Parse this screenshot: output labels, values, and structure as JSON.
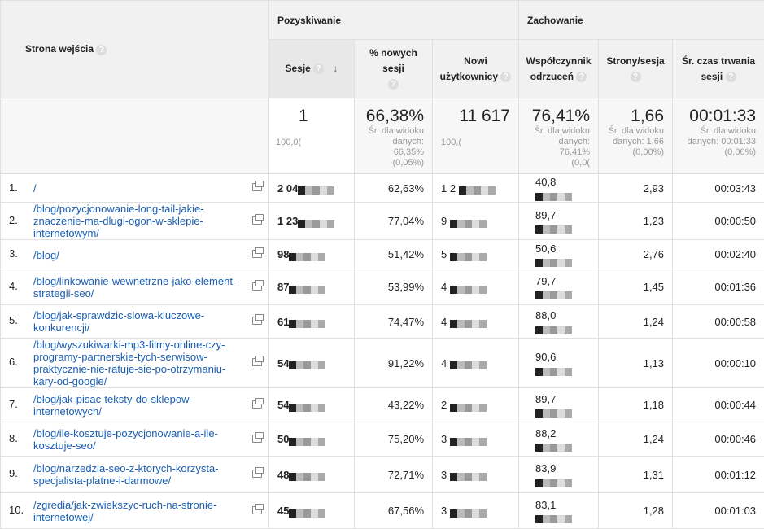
{
  "header": {
    "dimension": "Strona wejścia",
    "group_acquisition": "Pozyskiwanie",
    "group_behavior": "Zachowanie",
    "columns": [
      "Sesje",
      "% nowych sesji",
      "Nowi użytkownicy",
      "Współczynnik odrzuceń",
      "Strony/sesja",
      "Śr. czas trwania sesji"
    ]
  },
  "summary": {
    "sessions": {
      "value": "1",
      "sub": "100,0("
    },
    "new_sessions": {
      "value": "66,38%",
      "avg1": "Śr. dla widoku",
      "avg2": "danych: 66,35%",
      "avg3": "(0,05%)"
    },
    "new_users": {
      "value": "11 617",
      "sub": "100,("
    },
    "bounce": {
      "value": "76,41%",
      "avg1": "Śr. dla widoku",
      "avg2": "danych: 76,41%",
      "avg3": "(0,0("
    },
    "pages": {
      "value": "1,66",
      "avg1": "Śr. dla widoku",
      "avg2": "danych: 1,66",
      "avg3": "(0,00%)"
    },
    "duration": {
      "value": "00:01:33",
      "avg1": "Śr. dla widoku",
      "avg2": "danych: 00:01:33",
      "avg3": "(0,00%)"
    }
  },
  "rows": [
    {
      "n": "1.",
      "page": "/",
      "sessions": "2 04",
      "new_pct": "62,63%",
      "new_users": "1 2",
      "bounce": "40,8",
      "pages": "2,93",
      "duration": "00:03:43"
    },
    {
      "n": "2.",
      "page": "/blog/pozycjonowanie-long-tail-jakie-znaczenie-ma-dlugi-ogon-w-sklepie-internetowym/",
      "sessions": "1 23",
      "new_pct": "77,04%",
      "new_users": "9",
      "bounce": "89,7",
      "pages": "1,23",
      "duration": "00:00:50"
    },
    {
      "n": "3.",
      "page": "/blog/",
      "sessions": "98",
      "new_pct": "51,42%",
      "new_users": "5",
      "bounce": "50,6",
      "pages": "2,76",
      "duration": "00:02:40"
    },
    {
      "n": "4.",
      "page": "/blog/linkowanie-wewnetrzne-jako-element-strategii-seo/",
      "sessions": "87",
      "new_pct": "53,99%",
      "new_users": "4",
      "bounce": "79,7",
      "pages": "1,45",
      "duration": "00:01:36"
    },
    {
      "n": "5.",
      "page": "/blog/jak-sprawdzic-slowa-kluczowe-konkurencji/",
      "sessions": "61",
      "new_pct": "74,47%",
      "new_users": "4",
      "bounce": "88,0",
      "pages": "1,24",
      "duration": "00:00:58"
    },
    {
      "n": "6.",
      "page": "/blog/wyszukiwarki-mp3-filmy-online-czy-programy-partnerskie-tych-serwisow-praktycznie-nie-ratuje-sie-po-otrzymaniu-kary-od-google/",
      "sessions": "54",
      "new_pct": "91,22%",
      "new_users": "4",
      "bounce": "90,6",
      "pages": "1,13",
      "duration": "00:00:10"
    },
    {
      "n": "7.",
      "page": "/blog/jak-pisac-teksty-do-sklepow-internetowych/",
      "sessions": "54",
      "new_pct": "43,22%",
      "new_users": "2",
      "bounce": "89,7",
      "pages": "1,18",
      "duration": "00:00:44"
    },
    {
      "n": "8.",
      "page": "/blog/ile-kosztuje-pozycjonowanie-a-ile-kosztuje-seo/",
      "sessions": "50",
      "new_pct": "75,20%",
      "new_users": "3",
      "bounce": "88,2",
      "pages": "1,24",
      "duration": "00:00:46"
    },
    {
      "n": "9.",
      "page": "/blog/narzedzia-seo-z-ktorych-korzysta-specjalista-platne-i-darmowe/",
      "sessions": "48",
      "new_pct": "72,71%",
      "new_users": "3",
      "bounce": "83,9",
      "pages": "1,31",
      "duration": "00:01:12"
    },
    {
      "n": "10.",
      "page": "/zgredia/jak-zwiekszyc-ruch-na-stronie-internetowej/",
      "sessions": "45",
      "new_pct": "67,56%",
      "new_users": "3",
      "bounce": "83,1",
      "pages": "1,28",
      "duration": "00:01:03"
    }
  ]
}
